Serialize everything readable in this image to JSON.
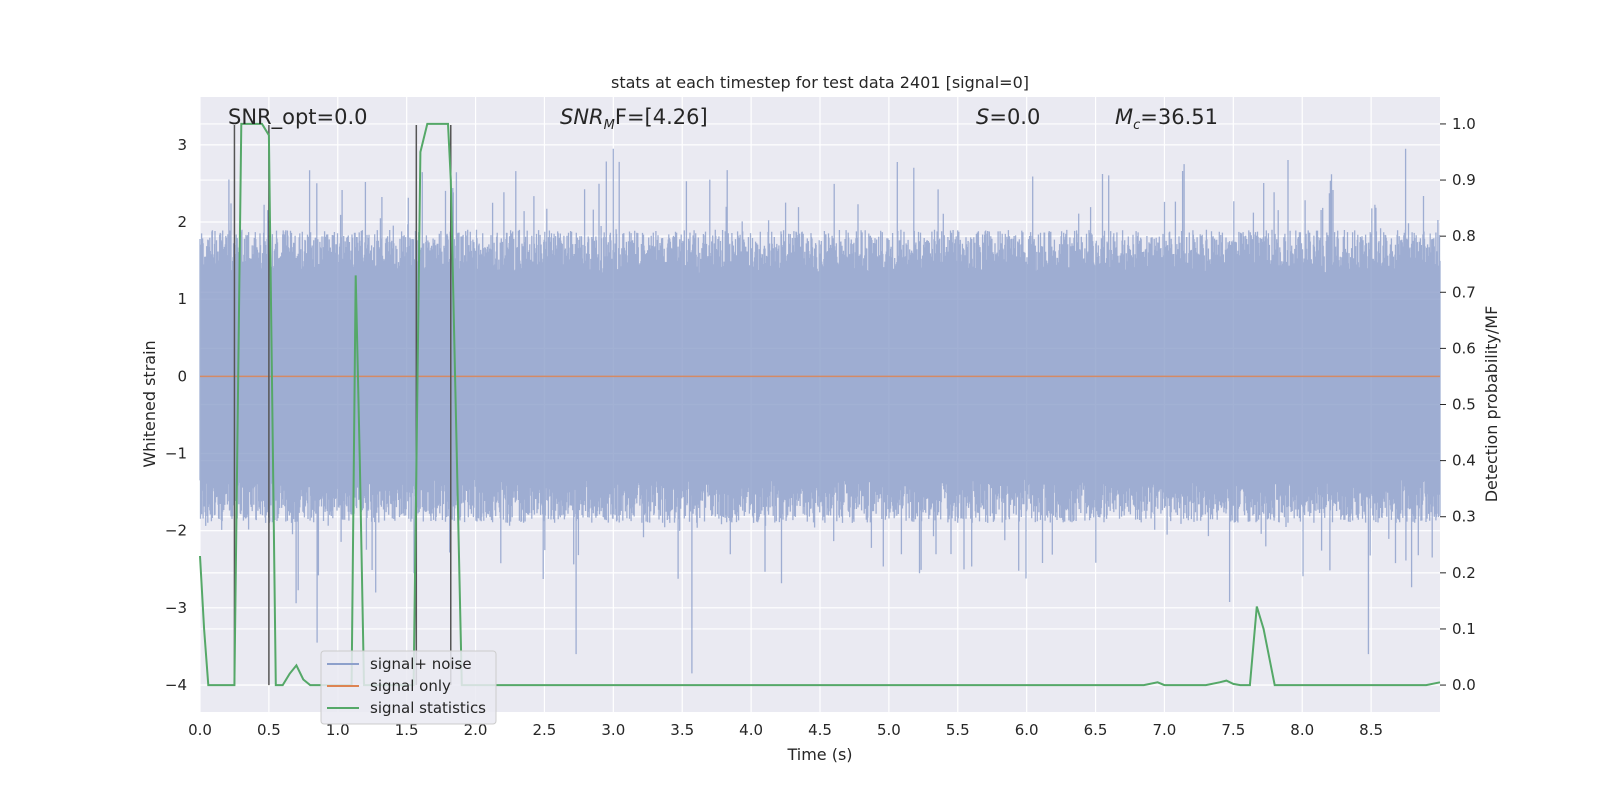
{
  "chart_data": {
    "type": "line",
    "title": "stats at each timestep for test data 2401 [signal=0]",
    "xlabel": "Time (s)",
    "ylabel": "Whitened strain",
    "ylabel_right": "Detection probability/MF",
    "xlim": [
      0.0,
      9.0
    ],
    "ylim": [
      -4.35,
      3.62
    ],
    "ylim_right": [
      -0.048,
      1.048
    ],
    "x_ticks": [
      "0.0",
      "0.5",
      "1.0",
      "1.5",
      "2.0",
      "2.5",
      "3.0",
      "3.5",
      "4.0",
      "4.5",
      "5.0",
      "5.5",
      "6.0",
      "6.5",
      "7.0",
      "7.5",
      "8.0",
      "8.5"
    ],
    "y_ticks": [
      "3",
      "2",
      "1",
      "0",
      "−1",
      "−2",
      "−3",
      "−4"
    ],
    "y_ticks_right": [
      "1.0",
      "0.9",
      "0.8",
      "0.7",
      "0.6",
      "0.5",
      "0.4",
      "0.3",
      "0.2",
      "0.1",
      "0.0"
    ],
    "grid": true,
    "legend_position": "lower-left",
    "annotations": {
      "snr_opt": "SNR_opt=0.0",
      "snr_mf_base": "SNR",
      "snr_mf_sub": "M",
      "snr_mf_rest": "F=[4.26]",
      "s_sym": "S",
      "s_rest": "=0.0",
      "mc_sym": "M",
      "mc_sub": "c",
      "mc_rest": "=36.51"
    },
    "series": [
      {
        "name": "signal+ noise",
        "axis": "left",
        "color": "#8da0cb",
        "envelope": {
          "typical_amplitude": 1.9,
          "peak_amplitude": 3.0
        },
        "notable_spikes": [
          {
            "x": 0.85,
            "y": -3.45
          },
          {
            "x": 2.73,
            "y": -3.6
          },
          {
            "x": 3.57,
            "y": -3.85
          },
          {
            "x": 3.0,
            "y": 2.95
          },
          {
            "x": 3.7,
            "y": 2.55
          },
          {
            "x": 8.48,
            "y": -3.6
          },
          {
            "x": 8.75,
            "y": 2.95
          }
        ]
      },
      {
        "name": "signal only",
        "axis": "left",
        "color": "#dd8452",
        "x": [
          0.0,
          9.0
        ],
        "y": [
          0.0,
          0.0
        ]
      },
      {
        "name": "signal statistics",
        "axis": "right",
        "color": "#55a868",
        "x": [
          0.0,
          0.03,
          0.06,
          0.25,
          0.3,
          0.45,
          0.5,
          0.55,
          0.6,
          0.65,
          0.7,
          0.75,
          0.8,
          1.1,
          1.13,
          1.16,
          1.19,
          1.55,
          1.6,
          1.65,
          1.7,
          1.8,
          1.82,
          1.9,
          2.0,
          2.5,
          3.0,
          4.0,
          5.0,
          6.0,
          6.85,
          6.95,
          7.0,
          7.3,
          7.4,
          7.45,
          7.5,
          7.55,
          7.62,
          7.67,
          7.72,
          7.8,
          8.0,
          8.5,
          8.9,
          9.0
        ],
        "y": [
          0.23,
          0.1,
          0.0,
          0.0,
          1.0,
          1.0,
          0.98,
          0.0,
          0.0,
          0.02,
          0.035,
          0.01,
          0.0,
          0.0,
          0.73,
          0.4,
          0.0,
          0.0,
          0.95,
          1.0,
          1.0,
          1.0,
          0.9,
          0.0,
          0.0,
          0.0,
          0.0,
          0.0,
          0.0,
          0.0,
          0.0,
          0.005,
          0.0,
          0.0,
          0.005,
          0.008,
          0.002,
          0.0,
          0.0,
          0.14,
          0.1,
          0.0,
          0.0,
          0.0,
          0.0,
          0.005
        ]
      }
    ],
    "vertical_lines": {
      "color": "#555555",
      "x": [
        0.25,
        0.5,
        1.57,
        1.82
      ],
      "y_top": 0.998,
      "y_bottom": 0.0
    }
  }
}
